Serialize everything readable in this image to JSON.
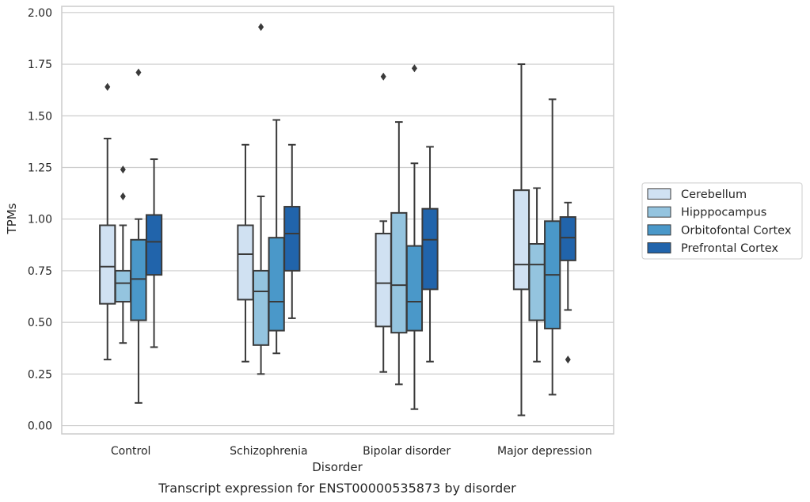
{
  "chart_data": {
    "type": "box",
    "caption": "Transcript expression for ENST00000535873 by disorder",
    "xlabel": "Disorder",
    "ylabel": "TPMs",
    "ylim": [
      -0.04,
      2.03
    ],
    "yticks": [
      0.0,
      0.25,
      0.5,
      0.75,
      1.0,
      1.25,
      1.5,
      1.75,
      2.0
    ],
    "ytick_labels": [
      "0.00",
      "0.25",
      "0.50",
      "0.75",
      "1.00",
      "1.25",
      "1.50",
      "1.75",
      "2.00"
    ],
    "grid": "horizontal",
    "legend_position": "right-outside",
    "categories": [
      "Control",
      "Schizophrenia",
      "Bipolar disorder",
      "Major depression"
    ],
    "series": [
      {
        "name": "Cerebellum",
        "color": "#d0e1f2",
        "boxes": [
          {
            "whislo": 0.32,
            "q1": 0.59,
            "med": 0.77,
            "q3": 0.97,
            "whishi": 1.39,
            "fliers": [
              1.64
            ]
          },
          {
            "whislo": 0.31,
            "q1": 0.61,
            "med": 0.83,
            "q3": 0.97,
            "whishi": 1.36,
            "fliers": []
          },
          {
            "whislo": 0.26,
            "q1": 0.48,
            "med": 0.69,
            "q3": 0.93,
            "whishi": 0.99,
            "fliers": [
              1.69
            ]
          },
          {
            "whislo": 0.05,
            "q1": 0.66,
            "med": 0.78,
            "q3": 1.14,
            "whishi": 1.75,
            "fliers": []
          }
        ]
      },
      {
        "name": "Hipppocampus",
        "color": "#94c4df",
        "boxes": [
          {
            "whislo": 0.4,
            "q1": 0.6,
            "med": 0.69,
            "q3": 0.75,
            "whishi": 0.97,
            "fliers": [
              1.11,
              1.24
            ]
          },
          {
            "whislo": 0.25,
            "q1": 0.39,
            "med": 0.65,
            "q3": 0.75,
            "whishi": 1.11,
            "fliers": [
              1.93
            ]
          },
          {
            "whislo": 0.2,
            "q1": 0.45,
            "med": 0.68,
            "q3": 1.03,
            "whishi": 1.47,
            "fliers": []
          },
          {
            "whislo": 0.31,
            "q1": 0.51,
            "med": 0.78,
            "q3": 0.88,
            "whishi": 1.15,
            "fliers": []
          }
        ]
      },
      {
        "name": "Orbitofontal Cortex",
        "color": "#4a98c9",
        "boxes": [
          {
            "whislo": 0.11,
            "q1": 0.51,
            "med": 0.71,
            "q3": 0.9,
            "whishi": 1.0,
            "fliers": [
              1.71
            ]
          },
          {
            "whislo": 0.35,
            "q1": 0.46,
            "med": 0.6,
            "q3": 0.91,
            "whishi": 1.48,
            "fliers": []
          },
          {
            "whislo": 0.08,
            "q1": 0.46,
            "med": 0.6,
            "q3": 0.87,
            "whishi": 1.27,
            "fliers": [
              1.73
            ]
          },
          {
            "whislo": 0.15,
            "q1": 0.47,
            "med": 0.73,
            "q3": 0.99,
            "whishi": 1.58,
            "fliers": []
          }
        ]
      },
      {
        "name": "Prefrontal Cortex",
        "color": "#2164ab",
        "boxes": [
          {
            "whislo": 0.38,
            "q1": 0.73,
            "med": 0.89,
            "q3": 1.02,
            "whishi": 1.29,
            "fliers": []
          },
          {
            "whislo": 0.52,
            "q1": 0.75,
            "med": 0.93,
            "q3": 1.06,
            "whishi": 1.36,
            "fliers": []
          },
          {
            "whislo": 0.31,
            "q1": 0.66,
            "med": 0.9,
            "q3": 1.05,
            "whishi": 1.35,
            "fliers": []
          },
          {
            "whislo": 0.56,
            "q1": 0.8,
            "med": 0.91,
            "q3": 1.01,
            "whishi": 1.08,
            "fliers": [
              0.32
            ]
          }
        ]
      }
    ]
  }
}
